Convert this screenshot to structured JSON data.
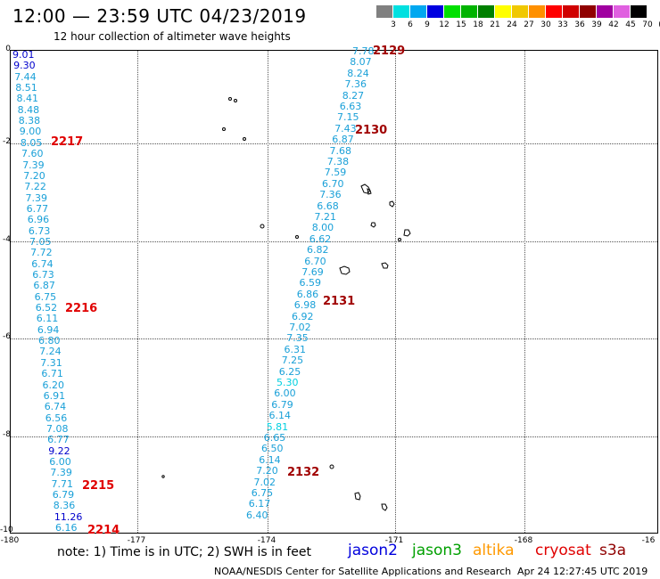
{
  "header": {
    "title": "12:00 — 23:59 UTC 04/23/2019",
    "subtitle": "12 hour collection of altimeter wave heights"
  },
  "colorscale": {
    "labels": [
      "3",
      "6",
      "9",
      "12",
      "15",
      "18",
      "21",
      "24",
      "27",
      "30",
      "33",
      "36",
      "39",
      "42",
      "45",
      "70",
      "(ft)"
    ],
    "colors": [
      "#808080",
      "#00e0e0",
      "#00a8f0",
      "#0000e0",
      "#00e000",
      "#00b400",
      "#008000",
      "#ffff00",
      "#f0c800",
      "#ff9000",
      "#ff0000",
      "#d00000",
      "#900000",
      "#a000a0",
      "#e060e0",
      "#000000"
    ]
  },
  "axes": {
    "lat_labels": [
      "0",
      "-2",
      "-4",
      "-6",
      "-8",
      "-10"
    ],
    "lon_labels": [
      "-180",
      "-177",
      "-174",
      "-171",
      "-168",
      "-16"
    ]
  },
  "tracks": [
    {
      "id": "2217",
      "values": [
        {
          "v": "9.01",
          "c": "#0000cc"
        },
        {
          "v": "9.30",
          "c": "#0000cc"
        },
        {
          "v": "7.44",
          "c": "#1aa0d8"
        },
        {
          "v": "8.51",
          "c": "#1aa0d8"
        },
        {
          "v": "8.41",
          "c": "#1aa0d8"
        },
        {
          "v": "8.48",
          "c": "#1aa0d8"
        },
        {
          "v": "8.38",
          "c": "#1aa0d8"
        },
        {
          "v": "9.00",
          "c": "#1aa0d8"
        },
        {
          "v": "8.05",
          "c": "#1aa0d8"
        },
        {
          "v": "7.60",
          "c": "#1aa0d8"
        },
        {
          "v": "7.39",
          "c": "#1aa0d8"
        },
        {
          "v": "7.20",
          "c": "#1aa0d8"
        },
        {
          "v": "7.22",
          "c": "#1aa0d8"
        },
        {
          "v": "7.39",
          "c": "#1aa0d8"
        },
        {
          "v": "6.77",
          "c": "#1aa0d8"
        },
        {
          "v": "6.96",
          "c": "#1aa0d8"
        },
        {
          "v": "6.73",
          "c": "#1aa0d8"
        },
        {
          "v": "7.05",
          "c": "#1aa0d8"
        },
        {
          "v": "7.72",
          "c": "#1aa0d8"
        },
        {
          "v": "6.74",
          "c": "#1aa0d8"
        },
        {
          "v": "6.73",
          "c": "#1aa0d8"
        },
        {
          "v": "6.87",
          "c": "#1aa0d8"
        },
        {
          "v": "6.75",
          "c": "#1aa0d8"
        },
        {
          "v": "6.52",
          "c": "#1aa0d8"
        },
        {
          "v": "6.11",
          "c": "#1aa0d8"
        },
        {
          "v": "6.94",
          "c": "#1aa0d8"
        },
        {
          "v": "6.80",
          "c": "#1aa0d8"
        },
        {
          "v": "7.24",
          "c": "#1aa0d8"
        },
        {
          "v": "7.31",
          "c": "#1aa0d8"
        },
        {
          "v": "6.71",
          "c": "#1aa0d8"
        },
        {
          "v": "6.20",
          "c": "#1aa0d8"
        },
        {
          "v": "6.91",
          "c": "#1aa0d8"
        },
        {
          "v": "6.74",
          "c": "#1aa0d8"
        },
        {
          "v": "6.56",
          "c": "#1aa0d8"
        },
        {
          "v": "7.08",
          "c": "#1aa0d8"
        },
        {
          "v": "6.77",
          "c": "#1aa0d8"
        },
        {
          "v": "9.22",
          "c": "#0000cc"
        },
        {
          "v": "6.00",
          "c": "#1aa0d8"
        },
        {
          "v": "7.39",
          "c": "#1aa0d8"
        },
        {
          "v": "7.71",
          "c": "#1aa0d8"
        },
        {
          "v": "6.79",
          "c": "#1aa0d8"
        },
        {
          "v": "8.36",
          "c": "#1aa0d8"
        },
        {
          "v": "11.26",
          "c": "#0000cc"
        },
        {
          "v": "6.16",
          "c": "#1aa0d8"
        }
      ]
    },
    {
      "id": "2129",
      "values": [
        {
          "v": "7.78",
          "c": "#1aa0d8"
        },
        {
          "v": "8.07",
          "c": "#1aa0d8"
        },
        {
          "v": "8.24",
          "c": "#1aa0d8"
        },
        {
          "v": "7.36",
          "c": "#1aa0d8"
        },
        {
          "v": "8.27",
          "c": "#1aa0d8"
        },
        {
          "v": "6.63",
          "c": "#1aa0d8"
        },
        {
          "v": "7.15",
          "c": "#1aa0d8"
        },
        {
          "v": "7.43",
          "c": "#1aa0d8"
        },
        {
          "v": "6.87",
          "c": "#1aa0d8"
        },
        {
          "v": "7.68",
          "c": "#1aa0d8"
        },
        {
          "v": "7.38",
          "c": "#1aa0d8"
        },
        {
          "v": "7.59",
          "c": "#1aa0d8"
        },
        {
          "v": "6.70",
          "c": "#1aa0d8"
        },
        {
          "v": "7.36",
          "c": "#1aa0d8"
        },
        {
          "v": "6.68",
          "c": "#1aa0d8"
        },
        {
          "v": "7.21",
          "c": "#1aa0d8"
        },
        {
          "v": "8.00",
          "c": "#1aa0d8"
        },
        {
          "v": "6.62",
          "c": "#1aa0d8"
        },
        {
          "v": "6.82",
          "c": "#1aa0d8"
        },
        {
          "v": "6.70",
          "c": "#1aa0d8"
        },
        {
          "v": "7.69",
          "c": "#1aa0d8"
        },
        {
          "v": "6.59",
          "c": "#1aa0d8"
        },
        {
          "v": "6.86",
          "c": "#1aa0d8"
        },
        {
          "v": "6.98",
          "c": "#1aa0d8"
        },
        {
          "v": "6.92",
          "c": "#1aa0d8"
        },
        {
          "v": "7.02",
          "c": "#1aa0d8"
        },
        {
          "v": "7.35",
          "c": "#1aa0d8"
        },
        {
          "v": "6.31",
          "c": "#1aa0d8"
        },
        {
          "v": "7.25",
          "c": "#1aa0d8"
        },
        {
          "v": "6.25",
          "c": "#1aa0d8"
        },
        {
          "v": "5.30",
          "c": "#00d0e0"
        },
        {
          "v": "6.00",
          "c": "#1aa0d8"
        },
        {
          "v": "6.79",
          "c": "#1aa0d8"
        },
        {
          "v": "6.14",
          "c": "#1aa0d8"
        },
        {
          "v": "5.81",
          "c": "#00d0e0"
        },
        {
          "v": "6.65",
          "c": "#1aa0d8"
        },
        {
          "v": "6.50",
          "c": "#1aa0d8"
        },
        {
          "v": "6.14",
          "c": "#1aa0d8"
        },
        {
          "v": "7.20",
          "c": "#1aa0d8"
        },
        {
          "v": "7.02",
          "c": "#1aa0d8"
        },
        {
          "v": "6.75",
          "c": "#1aa0d8"
        },
        {
          "v": "6.17",
          "c": "#1aa0d8"
        },
        {
          "v": "6.40",
          "c": "#1aa0d8"
        }
      ]
    }
  ],
  "pass_labels": [
    {
      "text": "2129",
      "color": "#a00000"
    },
    {
      "text": "2130",
      "color": "#a00000"
    },
    {
      "text": "2131",
      "color": "#a00000"
    },
    {
      "text": "2132",
      "color": "#a00000"
    },
    {
      "text": "2217",
      "color": "#e00000"
    },
    {
      "text": "2216",
      "color": "#e00000"
    },
    {
      "text": "2215",
      "color": "#e00000"
    },
    {
      "text": "2214",
      "color": "#e00000"
    }
  ],
  "note": "note:  1) Time is in UTC;  2) SWH is in feet",
  "legend": [
    {
      "name": "jason2",
      "color": "#0000dd"
    },
    {
      "name": "jason3",
      "color": "#00a000"
    },
    {
      "name": "altika",
      "color": "#ff9900"
    },
    {
      "name": "cryosat",
      "color": "#e00000"
    },
    {
      "name": "s3a",
      "color": "#900000"
    }
  ],
  "footer": {
    "source": "NOAA/NESDIS Center for Satellite Applications and Research",
    "timestamp": "Apr 24 12:27:45 UTC 2019"
  }
}
